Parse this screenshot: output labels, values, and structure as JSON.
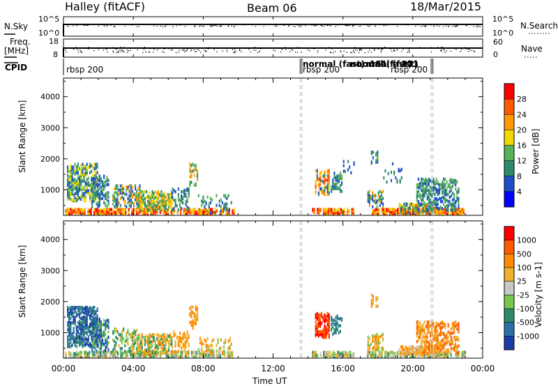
{
  "header": {
    "station": "Halley (fitACF)",
    "beam": "Beam 06",
    "date": "18/Mar/2015"
  },
  "strip1": {
    "left_label": "N.Sky",
    "right_label": "N.Search",
    "left_ticks": [
      "10^5",
      "10^0"
    ],
    "right_ticks": [
      "10^5",
      "10^0"
    ]
  },
  "strip2": {
    "left_label_1": "Freq.",
    "left_label_2": "[MHz]",
    "right_label": "Nave",
    "left_ticks": [
      "18",
      "8"
    ],
    "right_ticks": [
      "60",
      "0"
    ]
  },
  "cpid": {
    "label": "CPID",
    "entries": [
      {
        "text": "rbsp 200",
        "hour": 0.0
      },
      {
        "text": "normal (fast)",
        "hour": 13.6
      },
      {
        "text": "rbsp 200",
        "hour": 13.6
      },
      {
        "text": "normal (fast)",
        "hour": 15.7
      },
      {
        "text": "151",
        "hour": 15.7
      },
      {
        "text": "normal (fast)",
        "hour": 17.1
      },
      {
        "text": "151",
        "hour": 17.1
      },
      {
        "text": "rbsp 200",
        "hour": 19.1
      }
    ],
    "boundaries": [
      13.55,
      13.65,
      21.05,
      21.15
    ]
  },
  "chart_data": [
    {
      "type": "heatmap",
      "name": "power",
      "ylabel": "Slant Range [km]",
      "ylim": [
        180,
        4600
      ],
      "x_range_hours": [
        0,
        24
      ],
      "yticks": [
        1000,
        2000,
        3000,
        4000
      ],
      "colorbar": {
        "label": "Power [dB]",
        "ticks": [
          "28",
          "24",
          "20",
          "16",
          "12",
          "8",
          "4"
        ],
        "colors": [
          "#0000ff",
          "#1e4fc8",
          "#2d8a6e",
          "#58b058",
          "#f0d800",
          "#ff9a00",
          "#ff5a00",
          "#ff0000"
        ]
      },
      "clusters": [
        {
          "x": [
            0.2,
            1.9
          ],
          "y": [
            600,
            1800
          ],
          "d": 0.45,
          "c": [
            1,
            2,
            3,
            4
          ]
        },
        {
          "x": [
            1.6,
            2.6
          ],
          "y": [
            400,
            1400
          ],
          "d": 0.4,
          "c": [
            1,
            2,
            3
          ]
        },
        {
          "x": [
            2.8,
            4.4
          ],
          "y": [
            400,
            1100
          ],
          "d": 0.35,
          "c": [
            1,
            2,
            3,
            5
          ]
        },
        {
          "x": [
            4.2,
            6.2
          ],
          "y": [
            300,
            900
          ],
          "d": 0.5,
          "c": [
            2,
            3,
            4,
            5
          ]
        },
        {
          "x": [
            6.2,
            7.2
          ],
          "y": [
            300,
            1000
          ],
          "d": 0.25,
          "c": [
            1,
            2,
            3
          ]
        },
        {
          "x": [
            7.2,
            7.7
          ],
          "y": [
            1100,
            1800
          ],
          "d": 0.3,
          "c": [
            2,
            3,
            5
          ]
        },
        {
          "x": [
            7.7,
            9.6
          ],
          "y": [
            220,
            800
          ],
          "d": 0.12,
          "c": [
            1,
            2,
            3
          ]
        },
        {
          "x": [
            14.4,
            15.2
          ],
          "y": [
            800,
            1600
          ],
          "d": 0.4,
          "c": [
            1,
            2,
            4,
            5,
            6
          ]
        },
        {
          "x": [
            15.3,
            15.9
          ],
          "y": [
            900,
            1500
          ],
          "d": 0.3,
          "c": [
            1,
            2,
            3
          ]
        },
        {
          "x": [
            16.0,
            16.6
          ],
          "y": [
            1500,
            1900
          ],
          "d": 0.15,
          "c": [
            1,
            2
          ]
        },
        {
          "x": [
            17.4,
            18.3
          ],
          "y": [
            400,
            900
          ],
          "d": 0.35,
          "c": [
            1,
            2,
            3,
            5
          ]
        },
        {
          "x": [
            17.6,
            18.0
          ],
          "y": [
            1800,
            2200
          ],
          "d": 0.4,
          "c": [
            1,
            2,
            3
          ]
        },
        {
          "x": [
            18.3,
            19.4
          ],
          "y": [
            1200,
            1800
          ],
          "d": 0.15,
          "c": [
            1,
            2
          ]
        },
        {
          "x": [
            19.2,
            21.4
          ],
          "y": [
            220,
            500
          ],
          "d": 0.55,
          "c": [
            1,
            2,
            3,
            4,
            5,
            6
          ]
        },
        {
          "x": [
            20.2,
            22.6
          ],
          "y": [
            300,
            1300
          ],
          "d": 0.35,
          "c": [
            1,
            2,
            3
          ]
        }
      ],
      "ground_band": {
        "x": [
          0.1,
          23.0
        ],
        "y": [
          180,
          320
        ],
        "c": [
          6,
          7,
          5,
          4
        ]
      }
    },
    {
      "type": "heatmap",
      "name": "velocity",
      "ylabel": "Slant Range [km]",
      "xlabel": "Time UT",
      "ylim": [
        180,
        4600
      ],
      "x_range_hours": [
        0,
        24
      ],
      "yticks": [
        1000,
        2000,
        3000,
        4000
      ],
      "xtick_labels": [
        "00:00",
        "04:00",
        "08:00",
        "12:00",
        "16:00",
        "20:00",
        "00:00"
      ],
      "colorbar": {
        "label": "Velocity [m s-1]",
        "ticks": [
          "1000",
          "500",
          "100",
          "25",
          "-25",
          "-100",
          "-500",
          "-1000"
        ],
        "colors": [
          "#1a3ca8",
          "#2c70a8",
          "#2d8a6e",
          "#78c850",
          "#c8c8c8",
          "#f0b030",
          "#ff8a00",
          "#ff5a00",
          "#ff0000"
        ]
      },
      "clusters": [
        {
          "x": [
            0.2,
            1.9
          ],
          "y": [
            500,
            1800
          ],
          "d": 0.5,
          "c": [
            0,
            1,
            2
          ]
        },
        {
          "x": [
            1.6,
            2.6
          ],
          "y": [
            350,
            1400
          ],
          "d": 0.4,
          "c": [
            0,
            1,
            2,
            3
          ]
        },
        {
          "x": [
            2.8,
            4.4
          ],
          "y": [
            300,
            1100
          ],
          "d": 0.3,
          "c": [
            2,
            3,
            5
          ]
        },
        {
          "x": [
            4.2,
            6.2
          ],
          "y": [
            250,
            900
          ],
          "d": 0.45,
          "c": [
            3,
            5,
            6,
            2
          ]
        },
        {
          "x": [
            6.2,
            7.2
          ],
          "y": [
            300,
            1000
          ],
          "d": 0.3,
          "c": [
            5,
            6
          ]
        },
        {
          "x": [
            7.2,
            7.7
          ],
          "y": [
            1100,
            1800
          ],
          "d": 0.3,
          "c": [
            5,
            6
          ]
        },
        {
          "x": [
            7.7,
            9.6
          ],
          "y": [
            220,
            800
          ],
          "d": 0.15,
          "c": [
            5,
            6,
            3
          ]
        },
        {
          "x": [
            14.4,
            15.2
          ],
          "y": [
            800,
            1600
          ],
          "d": 0.45,
          "c": [
            7,
            8
          ]
        },
        {
          "x": [
            15.3,
            15.9
          ],
          "y": [
            900,
            1500
          ],
          "d": 0.3,
          "c": [
            1,
            2
          ]
        },
        {
          "x": [
            17.4,
            18.3
          ],
          "y": [
            400,
            900
          ],
          "d": 0.35,
          "c": [
            5,
            6,
            3
          ]
        },
        {
          "x": [
            17.6,
            18.0
          ],
          "y": [
            1800,
            2200
          ],
          "d": 0.4,
          "c": [
            5,
            6
          ]
        },
        {
          "x": [
            19.2,
            21.4
          ],
          "y": [
            220,
            500
          ],
          "d": 0.55,
          "c": [
            4,
            5,
            6
          ]
        },
        {
          "x": [
            20.2,
            22.6
          ],
          "y": [
            300,
            1300
          ],
          "d": 0.4,
          "c": [
            5,
            6,
            7
          ]
        }
      ],
      "ground_band": {
        "x": [
          0.1,
          23.0
        ],
        "y": [
          180,
          330
        ],
        "c": [
          3,
          4,
          2,
          5
        ]
      }
    }
  ]
}
